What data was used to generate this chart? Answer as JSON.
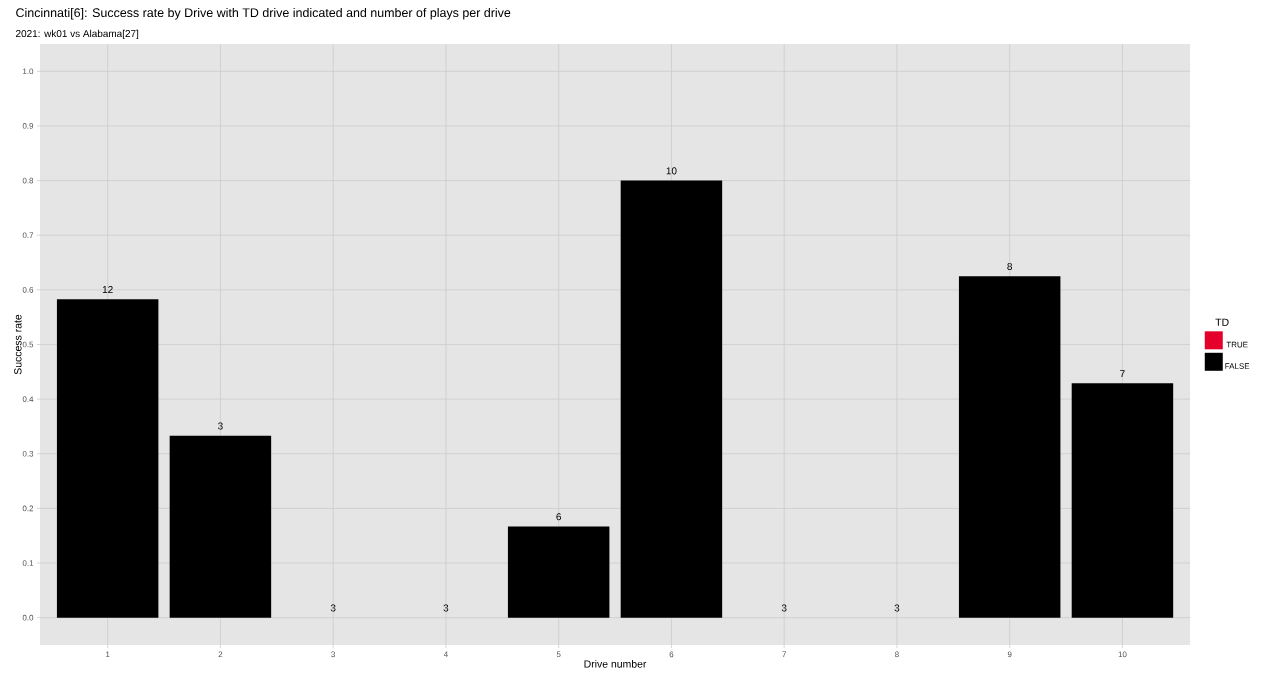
{
  "chart_data": {
    "type": "bar",
    "title": "Cincinnati[6]: Success rate by Drive with TD drive indicated and number of plays per drive",
    "subtitle": "2021: wk01 vs Alabama[27]",
    "xlabel": "Drive number",
    "ylabel": "Success rate",
    "legend_title": "TD",
    "categories": [
      "1",
      "2",
      "3",
      "4",
      "5",
      "6",
      "7",
      "8",
      "9",
      "10"
    ],
    "series": [
      {
        "name": "TRUE",
        "color": "#e4002b",
        "values": [
          null,
          null,
          null,
          null,
          null,
          null,
          null,
          null,
          null,
          null
        ]
      },
      {
        "name": "FALSE",
        "color": "#000000",
        "values": [
          0.583,
          0.333,
          0,
          0,
          0.167,
          0.8,
          0,
          0,
          0.625,
          0.429
        ]
      }
    ],
    "annotations": [
      {
        "text": "12",
        "x": "1",
        "y": 0.583
      },
      {
        "text": "3",
        "x": "2",
        "y": 0.333
      },
      {
        "text": "3",
        "x": "3",
        "y": 0
      },
      {
        "text": "3",
        "x": "4",
        "y": 0
      },
      {
        "text": "6",
        "x": "5",
        "y": 0.167
      },
      {
        "text": "10",
        "x": "6",
        "y": 0.8
      },
      {
        "text": "3",
        "x": "7",
        "y": 0
      },
      {
        "text": "3",
        "x": "8",
        "y": 0
      },
      {
        "text": "8",
        "x": "9",
        "y": 0.625
      },
      {
        "text": "7",
        "x": "10",
        "y": 0.429
      }
    ],
    "ylim": [
      -0.05,
      1.05
    ],
    "yticks": [
      {
        "value": 0,
        "label": "0.0"
      },
      0.1,
      0.2,
      0.3,
      0.4,
      0.5,
      0.6,
      0.7,
      0.8,
      0.9,
      {
        "value": 1,
        "label": "1.0"
      }
    ],
    "grid": true,
    "legend": "right"
  }
}
